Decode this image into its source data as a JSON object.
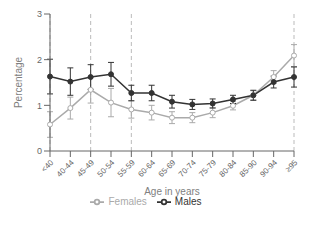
{
  "chart_data": {
    "type": "line",
    "xlabel": "Age in years",
    "ylabel": "Percentage",
    "categories": [
      "<40",
      "40-44",
      "45-49",
      "50-54",
      "55-59",
      "60-64",
      "65-69",
      "70-74",
      "75-79",
      "80-84",
      "85-90",
      "90-94",
      "≥95"
    ],
    "series": [
      {
        "name": "Females",
        "color": "#aaaaaa",
        "marker": "circle_open",
        "values": [
          0.58,
          0.94,
          1.34,
          1.06,
          0.91,
          0.84,
          0.73,
          0.73,
          0.84,
          0.99,
          1.22,
          1.62,
          2.09
        ],
        "ci_low": [
          0.3,
          0.7,
          1.05,
          0.75,
          0.72,
          0.68,
          0.6,
          0.62,
          0.73,
          0.9,
          1.12,
          1.48,
          1.85
        ],
        "ci_high": [
          0.86,
          1.18,
          1.63,
          1.37,
          1.1,
          1.0,
          0.86,
          0.84,
          0.95,
          1.08,
          1.32,
          1.76,
          2.33
        ]
      },
      {
        "name": "Males",
        "color": "#333333",
        "marker": "circle",
        "values": [
          1.63,
          1.52,
          1.62,
          1.68,
          1.27,
          1.27,
          1.08,
          1.02,
          1.04,
          1.13,
          1.22,
          1.51,
          1.62
        ],
        "ci_low": [
          1.25,
          1.22,
          1.35,
          1.42,
          1.1,
          1.1,
          0.94,
          0.91,
          0.94,
          1.04,
          1.11,
          1.38,
          1.4
        ],
        "ci_high": [
          2.01,
          1.82,
          1.89,
          1.94,
          1.44,
          1.44,
          1.22,
          1.13,
          1.14,
          1.22,
          1.33,
          1.64,
          1.84
        ]
      }
    ],
    "reference_lines": {
      "x": [
        "<40",
        "45-49",
        "55-59",
        "≥95"
      ],
      "color": "#bbbbbb",
      "line_style": "dashed"
    },
    "ylim": [
      0,
      3
    ],
    "yticks": [
      0,
      1,
      2,
      3
    ],
    "grid": false,
    "legend": "bottom"
  }
}
